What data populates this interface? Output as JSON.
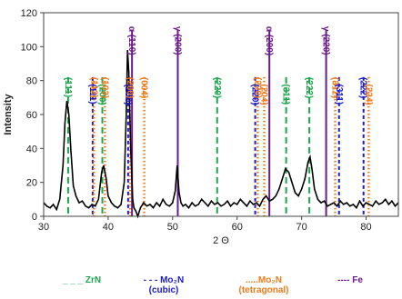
{
  "chart_data": {
    "type": "line",
    "xlabel": "2 Θ",
    "ylabel": "Intensity",
    "xlim": [
      30,
      85
    ],
    "ylim": [
      0,
      120
    ],
    "x_ticks": [
      30,
      40,
      50,
      60,
      70,
      80
    ],
    "y_ticks": [
      0,
      20,
      40,
      60,
      80,
      100,
      120
    ],
    "grid": false,
    "series": [
      {
        "x": [
          30,
          30.5,
          31,
          31.5,
          32,
          32.5,
          33,
          33.3,
          33.6,
          33.9,
          34.2,
          34.6,
          35,
          35.5,
          36,
          36.5,
          37,
          37.5,
          38,
          38.5,
          39,
          39.3,
          39.7,
          40,
          40.5,
          41,
          41.5,
          42,
          42.5,
          42.8,
          43,
          43.2,
          43.5,
          43.8,
          44,
          44.3,
          44.6,
          45,
          45.5,
          46,
          46.5,
          47,
          47.5,
          48,
          48.5,
          49,
          49.5,
          50,
          50.4,
          50.7,
          51,
          51.3,
          51.6,
          52,
          52.5,
          53,
          53.5,
          54,
          54.5,
          55,
          55.5,
          56,
          56.5,
          57,
          57.5,
          58,
          58.5,
          59,
          59.5,
          60,
          60.5,
          61,
          61.5,
          62,
          62.5,
          63,
          63.5,
          64,
          64.5,
          65,
          65.5,
          66,
          66.5,
          67,
          67.5,
          68,
          68.5,
          69,
          69.5,
          70,
          70.5,
          71,
          71.3,
          71.6,
          72,
          72.5,
          73,
          73.5,
          74,
          74.5,
          75,
          75.5,
          76,
          76.5,
          77,
          77.5,
          78,
          78.5,
          79,
          79.5,
          80,
          80.5,
          81,
          81.5,
          82,
          82.5,
          83,
          83.5,
          84,
          84.5,
          85
        ],
        "y": [
          8,
          6,
          5,
          7,
          4,
          10,
          30,
          55,
          68,
          60,
          40,
          18,
          12,
          8,
          9,
          6,
          5,
          7,
          6,
          10,
          26,
          30,
          22,
          12,
          8,
          6,
          5,
          7,
          20,
          60,
          98,
          85,
          40,
          10,
          5,
          3,
          0,
          5,
          8,
          6,
          7,
          5,
          8,
          6,
          10,
          7,
          6,
          8,
          15,
          30,
          14,
          8,
          6,
          7,
          5,
          8,
          6,
          7,
          10,
          8,
          6,
          9,
          7,
          8,
          6,
          7,
          9,
          6,
          8,
          7,
          10,
          8,
          6,
          9,
          7,
          8,
          6,
          10,
          12,
          9,
          10,
          12,
          16,
          22,
          28,
          26,
          20,
          14,
          12,
          16,
          22,
          32,
          35,
          28,
          16,
          10,
          8,
          9,
          6,
          7,
          8,
          6,
          9,
          7,
          8,
          6,
          7,
          5,
          9,
          6,
          8,
          7,
          6,
          9,
          7,
          8,
          10,
          7,
          9,
          6,
          8
        ]
      }
    ],
    "reference_lines": [
      {
        "x": 33.8,
        "phase": "zrn",
        "label": "(111)"
      },
      {
        "x": 37.6,
        "phase": "mo2n_cubic",
        "label": "(111)"
      },
      {
        "x": 37.8,
        "phase": "mo2n_tetragonal",
        "label": "(112)"
      },
      {
        "x": 39.1,
        "phase": "zrn",
        "label": "(200)"
      },
      {
        "x": 39.5,
        "phase": "mo2n_tetragonal",
        "label": "(103)"
      },
      {
        "x": 43.1,
        "phase": "mo2n_cubic",
        "label": "(200)"
      },
      {
        "x": 43.4,
        "phase": "mo2n_tetragonal",
        "label": "(200)"
      },
      {
        "x": 43.7,
        "phase": "fe",
        "label": "α (110)"
      },
      {
        "x": 45.6,
        "phase": "mo2n_tetragonal",
        "label": "(004)"
      },
      {
        "x": 50.8,
        "phase": "fe",
        "label": "γ (200)"
      },
      {
        "x": 56.9,
        "phase": "zrn",
        "label": "(220)"
      },
      {
        "x": 62.8,
        "phase": "mo2n_cubic",
        "label": "(220)"
      },
      {
        "x": 63.2,
        "phase": "mo2n_tetragonal",
        "label": "(220)"
      },
      {
        "x": 64.2,
        "phase": "mo2n_tetragonal",
        "label": "(204)"
      },
      {
        "x": 65.0,
        "phase": "fe",
        "label": "α (200)"
      },
      {
        "x": 67.6,
        "phase": "zrn",
        "label": "(311)"
      },
      {
        "x": 71.2,
        "phase": "zrn",
        "label": "(222)"
      },
      {
        "x": 73.8,
        "phase": "fe",
        "label": "γ (220)"
      },
      {
        "x": 75.2,
        "phase": "mo2n_tetragonal",
        "label": "(312)"
      },
      {
        "x": 75.8,
        "phase": "mo2n_cubic",
        "label": "(311)"
      },
      {
        "x": 79.6,
        "phase": "mo2n_cubic",
        "label": "(222)"
      },
      {
        "x": 80.4,
        "phase": "mo2n_tetragonal",
        "label": "(224)"
      }
    ],
    "legend_placement": "bottom",
    "legend": [
      {
        "key": "zrn",
        "line1": "_ _ _ ZrN",
        "line2": "",
        "color": "#1aa64b"
      },
      {
        "key": "mo2n_cubic",
        "line1": "- - - Mo₂N",
        "line2": "(cubic)",
        "color": "#1a1ad1"
      },
      {
        "key": "mo2n_tetragonal",
        "line1": ".....Mo₂N",
        "line2": "(tetragonal)",
        "color": "#f07a1a"
      },
      {
        "key": "fe",
        "line1": "---- Fe",
        "line2": "",
        "color": "#6a1b8a"
      }
    ]
  },
  "colors": {
    "zrn": "#1aa64b",
    "mo2n_cubic": "#1a1ad1",
    "mo2n_tetragonal": "#f07a1a",
    "fe": "#6a1b8a",
    "pattern": "#000000"
  }
}
